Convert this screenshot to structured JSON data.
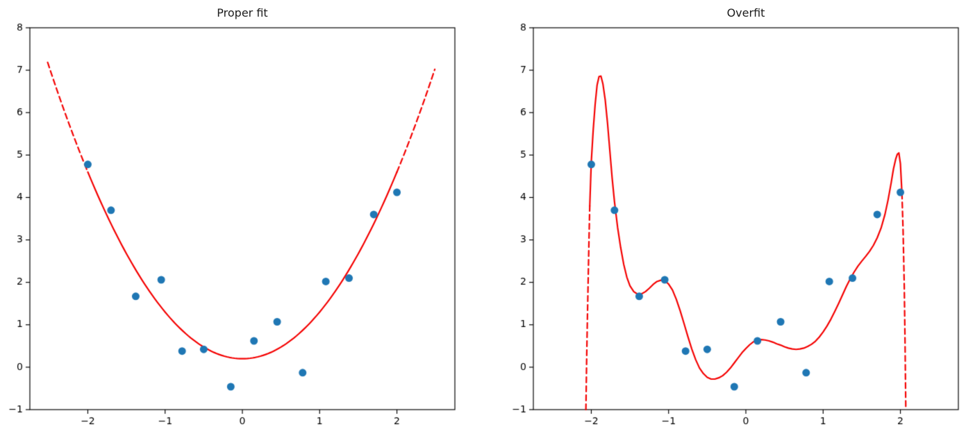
{
  "chart_data": [
    {
      "type": "scatter",
      "title": "Proper fit",
      "xlabel": "",
      "ylabel": "",
      "xlim": [
        -2.75,
        2.75
      ],
      "ylim": [
        -1,
        8
      ],
      "xticks": [
        -2,
        -1,
        0,
        1,
        2
      ],
      "yticks": [
        -1,
        0,
        1,
        2,
        3,
        4,
        5,
        6,
        7,
        8
      ],
      "grid": false,
      "legend": false,
      "point_color": "#1f77b4",
      "curve_color": "#f40000",
      "axis_color": "#000000",
      "points": [
        [
          -2.0,
          4.78
        ],
        [
          -1.7,
          3.7
        ],
        [
          -1.38,
          1.67
        ],
        [
          -1.05,
          2.06
        ],
        [
          -0.78,
          0.38
        ],
        [
          -0.5,
          0.42
        ],
        [
          -0.15,
          -0.46
        ],
        [
          0.15,
          0.62
        ],
        [
          0.45,
          1.07
        ],
        [
          0.78,
          -0.13
        ],
        [
          1.08,
          2.02
        ],
        [
          1.38,
          2.1
        ],
        [
          1.7,
          3.6
        ],
        [
          2.0,
          4.12
        ]
      ],
      "curves": [
        {
          "style": "dashed",
          "coeffs": [
            0.2,
            0.0,
            1.1
          ],
          "xrange": [
            -2.52,
            -2.0
          ]
        },
        {
          "style": "solid",
          "coeffs": [
            0.2,
            0.0,
            1.1
          ],
          "xrange": [
            -2.0,
            2.0
          ]
        },
        {
          "style": "dashed",
          "coeffs": [
            0.2,
            0.0,
            1.1
          ],
          "xrange": [
            2.0,
            2.49
          ]
        }
      ]
    },
    {
      "type": "scatter",
      "title": "Overfit",
      "xlabel": "",
      "ylabel": "",
      "xlim": [
        -2.75,
        2.75
      ],
      "ylim": [
        -1,
        8
      ],
      "xticks": [
        -2,
        -1,
        0,
        1,
        2
      ],
      "yticks": [
        -1,
        0,
        1,
        2,
        3,
        4,
        5,
        6,
        7,
        8
      ],
      "grid": false,
      "legend": false,
      "point_color": "#1f77b4",
      "curve_color": "#f40000",
      "axis_color": "#000000",
      "points": [
        [
          -2.0,
          4.78
        ],
        [
          -1.7,
          3.7
        ],
        [
          -1.38,
          1.67
        ],
        [
          -1.05,
          2.06
        ],
        [
          -0.78,
          0.38
        ],
        [
          -0.5,
          0.42
        ],
        [
          -0.15,
          -0.46
        ],
        [
          0.15,
          0.62
        ],
        [
          0.45,
          1.07
        ],
        [
          0.78,
          -0.13
        ],
        [
          1.08,
          2.02
        ],
        [
          1.38,
          2.1
        ],
        [
          1.7,
          3.6
        ],
        [
          2.0,
          4.12
        ]
      ],
      "curves": [
        {
          "style": "dashed",
          "points": [
            [
              -2.07,
              -1.0
            ],
            [
              -2.06,
              0.2
            ],
            [
              -2.05,
              1.2
            ],
            [
              -2.04,
              2.1
            ],
            [
              -2.03,
              3.0
            ],
            [
              -2.02,
              3.8
            ]
          ]
        },
        {
          "style": "solid",
          "points": [
            [
              -2.02,
              3.8
            ],
            [
              -2.0,
              4.85
            ],
            [
              -1.975,
              5.6
            ],
            [
              -1.95,
              6.2
            ],
            [
              -1.925,
              6.65
            ],
            [
              -1.9,
              6.85
            ],
            [
              -1.875,
              6.86
            ],
            [
              -1.85,
              6.68
            ],
            [
              -1.82,
              6.3
            ],
            [
              -1.79,
              5.75
            ],
            [
              -1.76,
              5.1
            ],
            [
              -1.73,
              4.45
            ],
            [
              -1.7,
              3.9
            ],
            [
              -1.66,
              3.3
            ],
            [
              -1.62,
              2.82
            ],
            [
              -1.58,
              2.42
            ],
            [
              -1.54,
              2.12
            ],
            [
              -1.5,
              1.92
            ],
            [
              -1.45,
              1.78
            ],
            [
              -1.4,
              1.72
            ],
            [
              -1.35,
              1.73
            ],
            [
              -1.3,
              1.78
            ],
            [
              -1.25,
              1.86
            ],
            [
              -1.2,
              1.95
            ],
            [
              -1.15,
              2.02
            ],
            [
              -1.1,
              2.05
            ],
            [
              -1.05,
              2.04
            ],
            [
              -1.0,
              1.96
            ],
            [
              -0.95,
              1.82
            ],
            [
              -0.9,
              1.6
            ],
            [
              -0.85,
              1.33
            ],
            [
              -0.8,
              1.03
            ],
            [
              -0.75,
              0.72
            ],
            [
              -0.7,
              0.43
            ],
            [
              -0.65,
              0.18
            ],
            [
              -0.6,
              -0.02
            ],
            [
              -0.55,
              -0.15
            ],
            [
              -0.5,
              -0.24
            ],
            [
              -0.45,
              -0.28
            ],
            [
              -0.4,
              -0.28
            ],
            [
              -0.35,
              -0.25
            ],
            [
              -0.3,
              -0.2
            ],
            [
              -0.25,
              -0.12
            ],
            [
              -0.2,
              -0.02
            ],
            [
              -0.15,
              0.1
            ],
            [
              -0.1,
              0.22
            ],
            [
              -0.05,
              0.34
            ],
            [
              0.0,
              0.44
            ],
            [
              0.05,
              0.53
            ],
            [
              0.1,
              0.6
            ],
            [
              0.15,
              0.64
            ],
            [
              0.2,
              0.65
            ],
            [
              0.25,
              0.64
            ],
            [
              0.3,
              0.62
            ],
            [
              0.35,
              0.59
            ],
            [
              0.4,
              0.55
            ],
            [
              0.45,
              0.52
            ],
            [
              0.5,
              0.48
            ],
            [
              0.55,
              0.45
            ],
            [
              0.6,
              0.43
            ],
            [
              0.65,
              0.42
            ],
            [
              0.7,
              0.43
            ],
            [
              0.75,
              0.45
            ],
            [
              0.8,
              0.49
            ],
            [
              0.85,
              0.54
            ],
            [
              0.9,
              0.61
            ],
            [
              0.95,
              0.71
            ],
            [
              1.0,
              0.83
            ],
            [
              1.05,
              0.97
            ],
            [
              1.1,
              1.13
            ],
            [
              1.15,
              1.31
            ],
            [
              1.2,
              1.5
            ],
            [
              1.25,
              1.7
            ],
            [
              1.3,
              1.9
            ],
            [
              1.35,
              2.08
            ],
            [
              1.4,
              2.24
            ],
            [
              1.45,
              2.38
            ],
            [
              1.5,
              2.5
            ],
            [
              1.55,
              2.61
            ],
            [
              1.6,
              2.73
            ],
            [
              1.65,
              2.87
            ],
            [
              1.7,
              3.05
            ],
            [
              1.75,
              3.28
            ],
            [
              1.8,
              3.6
            ],
            [
              1.84,
              3.94
            ],
            [
              1.88,
              4.34
            ],
            [
              1.91,
              4.67
            ],
            [
              1.94,
              4.91
            ],
            [
              1.96,
              5.02
            ],
            [
              1.98,
              5.05
            ],
            [
              2.0,
              4.8
            ],
            [
              2.02,
              4.1
            ]
          ]
        },
        {
          "style": "dashed",
          "points": [
            [
              2.02,
              4.1
            ],
            [
              2.035,
              3.2
            ],
            [
              2.05,
              1.9
            ],
            [
              2.06,
              0.6
            ],
            [
              2.07,
              -1.0
            ]
          ]
        }
      ]
    }
  ]
}
